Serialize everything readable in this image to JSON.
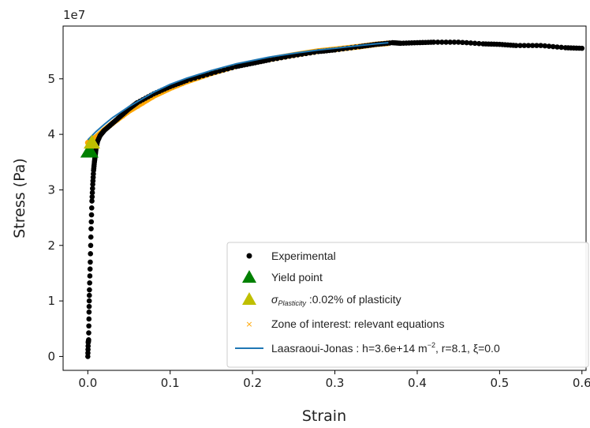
{
  "chart_data": {
    "type": "scatter",
    "xlabel": "Strain",
    "ylabel": "Stress (Pa)",
    "y_offset_text": "1e7",
    "xlim": [
      -0.03,
      0.605
    ],
    "ylim": [
      -0.25,
      5.95
    ],
    "y_scale_factor": 10000000,
    "grid": false,
    "legend_position": "lower-right",
    "xticks": [
      0.0,
      0.1,
      0.2,
      0.3,
      0.4,
      0.5,
      0.6
    ],
    "xtick_labels": [
      "0.0",
      "0.1",
      "0.2",
      "0.3",
      "0.4",
      "0.5",
      "0.6"
    ],
    "yticks": [
      0,
      1,
      2,
      3,
      4,
      5
    ],
    "ytick_labels": [
      "0",
      "1",
      "2",
      "3",
      "4",
      "5"
    ],
    "colors": {
      "experimental": "#000000",
      "yield": "#008000",
      "plasticity": "#bfbf00",
      "zone": "#ffa500",
      "model": "#1f77b4"
    },
    "series": [
      {
        "name": "Experimental",
        "kind": "points",
        "x": [
          0.0,
          0.0005,
          0.001,
          0.0015,
          0.002,
          0.003,
          0.004,
          0.005,
          0.006,
          0.007,
          0.008,
          0.009,
          0.01,
          0.012,
          0.015,
          0.02,
          0.03,
          0.04,
          0.05,
          0.06,
          0.08,
          0.1,
          0.12,
          0.15,
          0.18,
          0.2,
          0.22,
          0.25,
          0.28,
          0.3,
          0.33,
          0.35,
          0.37,
          0.38,
          0.4,
          0.42,
          0.45,
          0.48,
          0.5,
          0.52,
          0.55,
          0.58,
          0.6
        ],
        "y": [
          0.0,
          0.25,
          0.3,
          0.8,
          1.2,
          1.7,
          2.3,
          2.8,
          3.1,
          3.35,
          3.5,
          3.62,
          3.75,
          3.88,
          3.98,
          4.07,
          4.2,
          4.33,
          4.46,
          4.57,
          4.73,
          4.86,
          4.97,
          5.1,
          5.22,
          5.28,
          5.34,
          5.42,
          5.49,
          5.52,
          5.58,
          5.62,
          5.65,
          5.64,
          5.65,
          5.66,
          5.66,
          5.63,
          5.62,
          5.6,
          5.6,
          5.56,
          5.55
        ]
      },
      {
        "name": "Yield point",
        "kind": "marker",
        "x": [
          0.002
        ],
        "y": [
          3.7
        ]
      },
      {
        "name": "$\\sigma_{Plasticity}$ :0.02% of plasticity",
        "kind": "marker",
        "x": [
          0.005
        ],
        "y": [
          3.85
        ]
      },
      {
        "name": "Zone of interest: relevant equations",
        "kind": "band",
        "x": [
          0.0,
          0.01,
          0.02,
          0.03,
          0.05,
          0.08,
          0.1,
          0.12,
          0.15,
          0.18,
          0.2,
          0.22,
          0.25,
          0.28,
          0.3,
          0.33,
          0.35,
          0.365
        ],
        "y": [
          3.85,
          3.95,
          4.08,
          4.2,
          4.42,
          4.69,
          4.83,
          4.95,
          5.1,
          5.23,
          5.29,
          5.35,
          5.43,
          5.5,
          5.53,
          5.58,
          5.62,
          5.64
        ]
      },
      {
        "name": "Laasraoui-Jonas :  h=3.6e+14 m⁻², r=8.1, ξ=0.0",
        "kind": "line",
        "x": [
          0.0,
          0.01,
          0.02,
          0.03,
          0.05,
          0.08,
          0.1,
          0.12,
          0.15,
          0.18,
          0.2,
          0.22,
          0.25,
          0.28,
          0.3,
          0.33,
          0.35,
          0.365
        ],
        "y": [
          3.9,
          4.05,
          4.18,
          4.3,
          4.5,
          4.76,
          4.9,
          5.01,
          5.15,
          5.27,
          5.33,
          5.39,
          5.46,
          5.52,
          5.55,
          5.6,
          5.63,
          5.65
        ]
      }
    ],
    "legend": {
      "experimental": "Experimental",
      "yield": "Yield point",
      "plasticity_symbol": "σ",
      "plasticity_sub": "Plasticity",
      "plasticity_rest": " :0.02% of plasticity",
      "zone": "Zone of interest: relevant equations",
      "model_prefix": "Laasraoui-Jonas :  h=3.6e+14 m",
      "model_sup": "−2",
      "model_suffix": ", r=8.1, ξ=0.0"
    }
  }
}
